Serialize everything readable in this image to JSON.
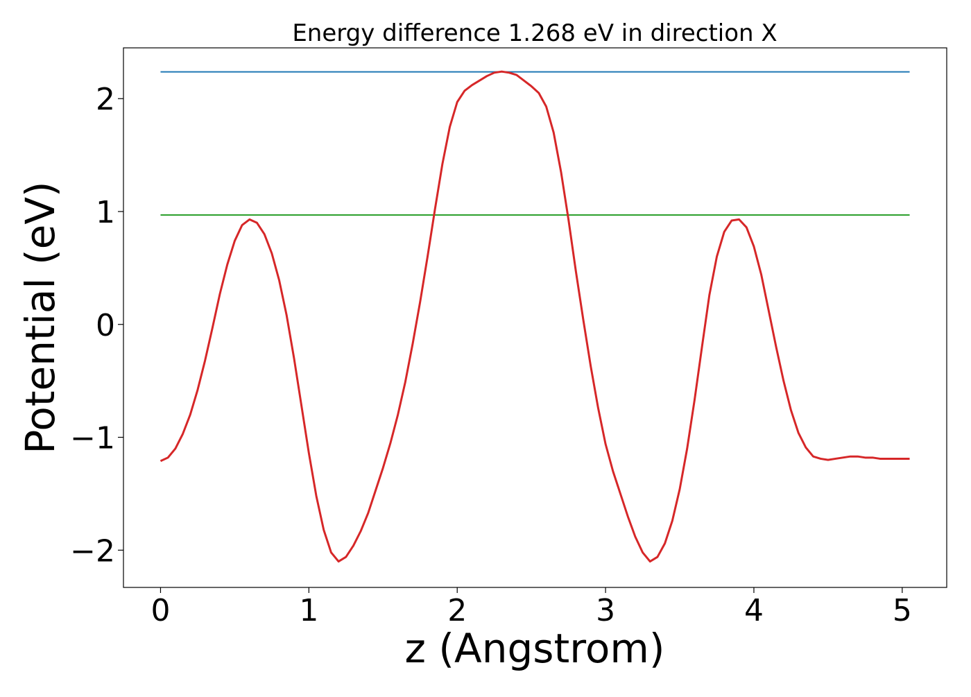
{
  "chart_data": {
    "type": "line",
    "title": "Energy difference 1.268 eV in direction X",
    "xlabel": "z (Angstrom)",
    "ylabel": "Potential (eV)",
    "xlim": [
      -0.25,
      5.3
    ],
    "ylim": [
      -2.33,
      2.45
    ],
    "xticks": [
      0,
      1,
      2,
      3,
      4,
      5
    ],
    "xtick_labels": [
      "0",
      "1",
      "2",
      "3",
      "4",
      "5"
    ],
    "yticks": [
      -2,
      -1,
      0,
      1,
      2
    ],
    "ytick_labels": [
      "−2",
      "−1",
      "0",
      "1",
      "2"
    ],
    "grid": false,
    "series": [
      {
        "color": "#1f77b4",
        "x": [
          0,
          5.05
        ],
        "y": [
          2.237,
          2.237
        ]
      },
      {
        "color": "#2ca02c",
        "x": [
          0,
          5.05
        ],
        "y": [
          0.969,
          0.969
        ]
      },
      {
        "color": "#d62728",
        "x": [
          0,
          0.05,
          0.1,
          0.15,
          0.2,
          0.25,
          0.3,
          0.35,
          0.4,
          0.45,
          0.5,
          0.55,
          0.6,
          0.65,
          0.7,
          0.75,
          0.8,
          0.85,
          0.9,
          0.95,
          1.0,
          1.05,
          1.1,
          1.15,
          1.2,
          1.25,
          1.3,
          1.35,
          1.4,
          1.45,
          1.5,
          1.55,
          1.6,
          1.65,
          1.7,
          1.75,
          1.8,
          1.85,
          1.9,
          1.95,
          2.0,
          2.05,
          2.1,
          2.15,
          2.2,
          2.25,
          2.3,
          2.35,
          2.4,
          2.45,
          2.5,
          2.55,
          2.6,
          2.65,
          2.7,
          2.75,
          2.8,
          2.85,
          2.9,
          2.95,
          3.0,
          3.05,
          3.1,
          3.15,
          3.2,
          3.25,
          3.3,
          3.35,
          3.4,
          3.45,
          3.5,
          3.55,
          3.6,
          3.65,
          3.7,
          3.75,
          3.8,
          3.85,
          3.9,
          3.95,
          4.0,
          4.05,
          4.1,
          4.15,
          4.2,
          4.25,
          4.3,
          4.35,
          4.4,
          4.45,
          4.5,
          4.55,
          4.6,
          4.65,
          4.7,
          4.75,
          4.8,
          4.85,
          4.9,
          4.95,
          5.0,
          5.05
        ],
        "y": [
          -1.21,
          -1.18,
          -1.1,
          -0.97,
          -0.8,
          -0.58,
          -0.32,
          -0.03,
          0.27,
          0.53,
          0.74,
          0.88,
          0.93,
          0.9,
          0.8,
          0.63,
          0.39,
          0.08,
          -0.3,
          -0.72,
          -1.14,
          -1.52,
          -1.82,
          -2.02,
          -2.1,
          -2.06,
          -1.96,
          -1.83,
          -1.67,
          -1.47,
          -1.27,
          -1.05,
          -0.8,
          -0.51,
          -0.17,
          0.2,
          0.6,
          1.02,
          1.42,
          1.75,
          1.97,
          2.07,
          2.12,
          2.16,
          2.2,
          2.23,
          2.24,
          2.23,
          2.21,
          2.16,
          2.11,
          2.05,
          1.93,
          1.7,
          1.35,
          0.93,
          0.47,
          0.04,
          -0.37,
          -0.74,
          -1.06,
          -1.3,
          -1.5,
          -1.7,
          -1.88,
          -2.02,
          -2.1,
          -2.06,
          -1.94,
          -1.74,
          -1.46,
          -1.1,
          -0.67,
          -0.2,
          0.26,
          0.6,
          0.82,
          0.92,
          0.93,
          0.86,
          0.69,
          0.44,
          0.12,
          -0.2,
          -0.5,
          -0.76,
          -0.96,
          -1.09,
          -1.17,
          -1.19,
          -1.2,
          -1.19,
          -1.18,
          -1.17,
          -1.17,
          -1.18,
          -1.18,
          -1.19,
          -1.19,
          -1.19,
          -1.19,
          -1.19
        ]
      }
    ]
  }
}
